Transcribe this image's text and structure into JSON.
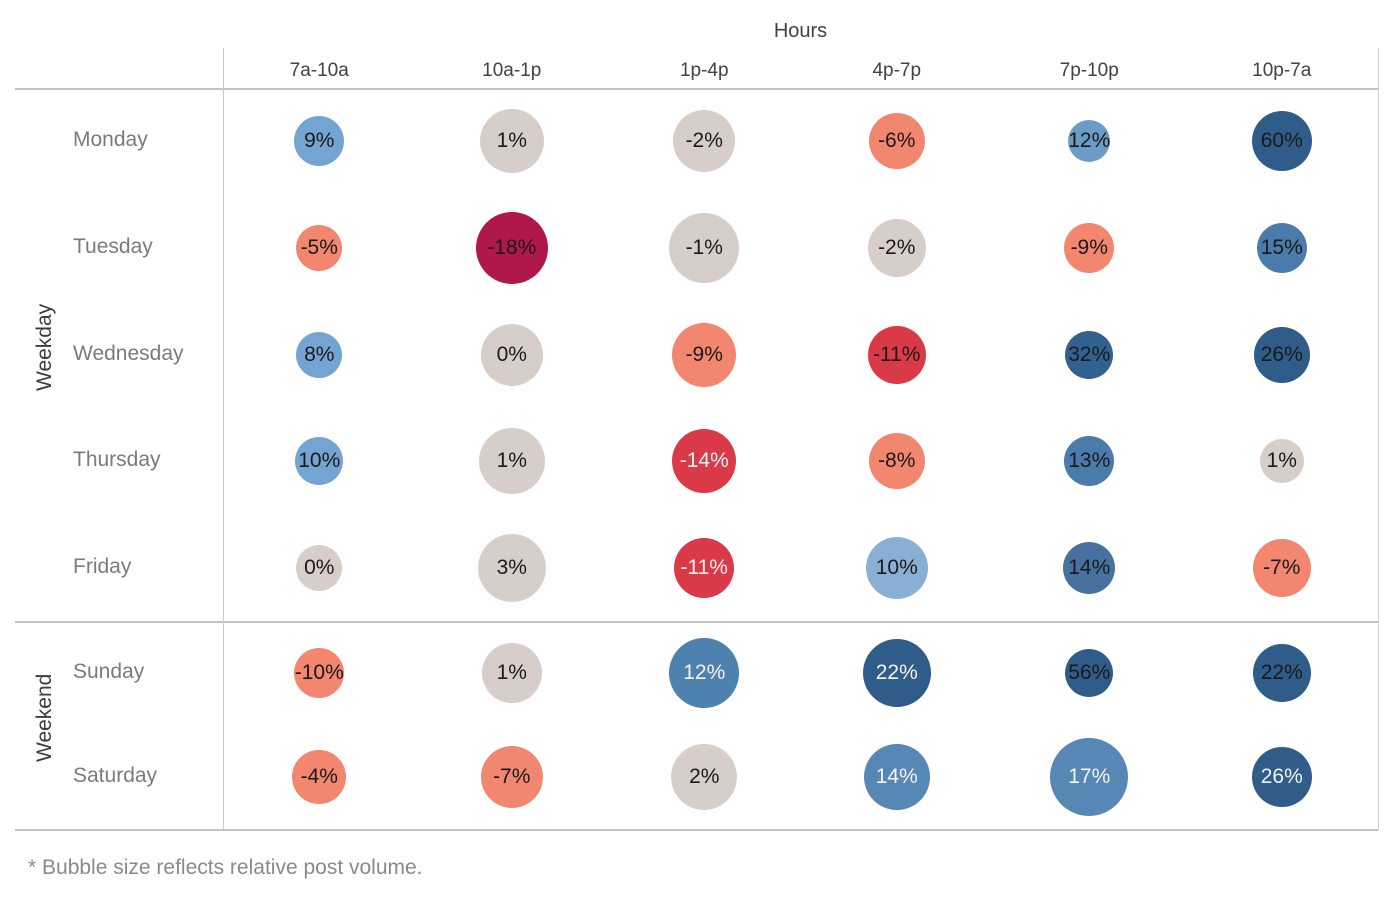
{
  "chart_data": {
    "type": "bubble-heatmap",
    "title": "Hours",
    "xlabel": "Hours",
    "ylabel": "Weekday / Weekend",
    "legend": "none",
    "grid": "row-column separators only",
    "note": "* Bubble size reflects relative post volume.",
    "size_encoding": "bubble diameter = relative post volume",
    "color_encoding": "diverging red (negative) to blue (positive) engagement change",
    "palette": {
      "light_blue": "#74A5D2",
      "medium_blue": "#4B7BAA",
      "dark_blue": "#2F5C88",
      "neutral_gray": "#D8CEC9",
      "salmon": "#F2866E",
      "red": "#DA3A48",
      "crimson": "#B0174B",
      "label_dark": "#1a1a1a",
      "label_light": "#f5f3f1",
      "line_gray": "#c4c2c2"
    },
    "columns": [
      "7a-10a",
      "10a-1p",
      "1p-4p",
      "4p-7p",
      "7p-10p",
      "10p-7a"
    ],
    "row_groups": [
      {
        "name": "Weekday",
        "rows": [
          {
            "name": "Monday",
            "cells": [
              {
                "label": "9%",
                "value": 9,
                "size": 50,
                "color": "#74A5D2",
                "text_color": "#1a1a1a"
              },
              {
                "label": "1%",
                "value": 1,
                "size": 64,
                "color": "#D8CEC9",
                "text_color": "#1a1a1a"
              },
              {
                "label": "-2%",
                "value": -2,
                "size": 62,
                "color": "#D8CEC9",
                "text_color": "#1a1a1a"
              },
              {
                "label": "-6%",
                "value": -6,
                "size": 56,
                "color": "#F2866E",
                "text_color": "#1a1a1a"
              },
              {
                "label": "12%",
                "value": 12,
                "size": 42,
                "color": "#6B9CC6",
                "text_color": "#1a1a1a"
              },
              {
                "label": "60%",
                "value": 60,
                "size": 60,
                "color": "#2F5C88",
                "text_color": "#1a1a1a"
              }
            ]
          },
          {
            "name": "Tuesday",
            "cells": [
              {
                "label": "-5%",
                "value": -5,
                "size": 46,
                "color": "#F2866E",
                "text_color": "#1a1a1a"
              },
              {
                "label": "-18%",
                "value": -18,
                "size": 72,
                "color": "#B0174B",
                "text_color": "#1a1a1a"
              },
              {
                "label": "-1%",
                "value": -1,
                "size": 70,
                "color": "#D8CEC9",
                "text_color": "#1a1a1a"
              },
              {
                "label": "-2%",
                "value": -2,
                "size": 58,
                "color": "#D8CEC9",
                "text_color": "#1a1a1a"
              },
              {
                "label": "-9%",
                "value": -9,
                "size": 50,
                "color": "#F2866E",
                "text_color": "#1a1a1a"
              },
              {
                "label": "15%",
                "value": 15,
                "size": 50,
                "color": "#4B7BAA",
                "text_color": "#1a1a1a"
              }
            ]
          },
          {
            "name": "Wednesday",
            "cells": [
              {
                "label": "8%",
                "value": 8,
                "size": 46,
                "color": "#74A5D2",
                "text_color": "#1a1a1a"
              },
              {
                "label": "0%",
                "value": 0,
                "size": 62,
                "color": "#D8CEC9",
                "text_color": "#1a1a1a"
              },
              {
                "label": "-9%",
                "value": -9,
                "size": 64,
                "color": "#F2866E",
                "text_color": "#1a1a1a"
              },
              {
                "label": "-11%",
                "value": -11,
                "size": 58,
                "color": "#DA3A48",
                "text_color": "#1a1a1a"
              },
              {
                "label": "32%",
                "value": 32,
                "size": 48,
                "color": "#31618F",
                "text_color": "#1a1a1a"
              },
              {
                "label": "26%",
                "value": 26,
                "size": 56,
                "color": "#2F5C88",
                "text_color": "#1a1a1a"
              }
            ]
          },
          {
            "name": "Thursday",
            "cells": [
              {
                "label": "10%",
                "value": 10,
                "size": 48,
                "color": "#74A5D2",
                "text_color": "#1a1a1a"
              },
              {
                "label": "1%",
                "value": 1,
                "size": 66,
                "color": "#D8CEC9",
                "text_color": "#1a1a1a"
              },
              {
                "label": "-14%",
                "value": -14,
                "size": 64,
                "color": "#DA3A48",
                "text_color": "#f5f3f1"
              },
              {
                "label": "-8%",
                "value": -8,
                "size": 56,
                "color": "#F2866E",
                "text_color": "#1a1a1a"
              },
              {
                "label": "13%",
                "value": 13,
                "size": 50,
                "color": "#4B7BAA",
                "text_color": "#1a1a1a"
              },
              {
                "label": "1%",
                "value": 1,
                "size": 44,
                "color": "#D8CEC9",
                "text_color": "#1a1a1a"
              }
            ]
          },
          {
            "name": "Friday",
            "cells": [
              {
                "label": "0%",
                "value": 0,
                "size": 46,
                "color": "#D8CEC9",
                "text_color": "#1a1a1a"
              },
              {
                "label": "3%",
                "value": 3,
                "size": 68,
                "color": "#D8CEC9",
                "text_color": "#1a1a1a"
              },
              {
                "label": "-11%",
                "value": -11,
                "size": 60,
                "color": "#DA3A48",
                "text_color": "#f5f3f1"
              },
              {
                "label": "10%",
                "value": 10,
                "size": 62,
                "color": "#89AFD4",
                "text_color": "#1a1a1a"
              },
              {
                "label": "14%",
                "value": 14,
                "size": 52,
                "color": "#47719E",
                "text_color": "#1a1a1a"
              },
              {
                "label": "-7%",
                "value": -7,
                "size": 58,
                "color": "#F2866E",
                "text_color": "#1a1a1a"
              }
            ]
          }
        ]
      },
      {
        "name": "Weekend",
        "rows": [
          {
            "name": "Sunday",
            "cells": [
              {
                "label": "-10%",
                "value": -10,
                "size": 50,
                "color": "#F2866E",
                "text_color": "#1a1a1a"
              },
              {
                "label": "1%",
                "value": 1,
                "size": 60,
                "color": "#D8CEC9",
                "text_color": "#1a1a1a"
              },
              {
                "label": "12%",
                "value": 12,
                "size": 70,
                "color": "#4E81AE",
                "text_color": "#f5f3f1"
              },
              {
                "label": "22%",
                "value": 22,
                "size": 68,
                "color": "#2F5C88",
                "text_color": "#f5f3f1"
              },
              {
                "label": "56%",
                "value": 56,
                "size": 48,
                "color": "#2F5C88",
                "text_color": "#1a1a1a"
              },
              {
                "label": "22%",
                "value": 22,
                "size": 58,
                "color": "#2F5C88",
                "text_color": "#1a1a1a"
              }
            ]
          },
          {
            "name": "Saturday",
            "cells": [
              {
                "label": "-4%",
                "value": -4,
                "size": 54,
                "color": "#F2866E",
                "text_color": "#1a1a1a"
              },
              {
                "label": "-7%",
                "value": -7,
                "size": 62,
                "color": "#F2866E",
                "text_color": "#1a1a1a"
              },
              {
                "label": "2%",
                "value": 2,
                "size": 66,
                "color": "#D8CEC9",
                "text_color": "#1a1a1a"
              },
              {
                "label": "14%",
                "value": 14,
                "size": 66,
                "color": "#5787B4",
                "text_color": "#f5f3f1"
              },
              {
                "label": "17%",
                "value": 17,
                "size": 78,
                "color": "#5787B4",
                "text_color": "#f5f3f1"
              },
              {
                "label": "26%",
                "value": 26,
                "size": 60,
                "color": "#2F5C88",
                "text_color": "#f5f3f1"
              }
            ]
          }
        ]
      }
    ]
  }
}
